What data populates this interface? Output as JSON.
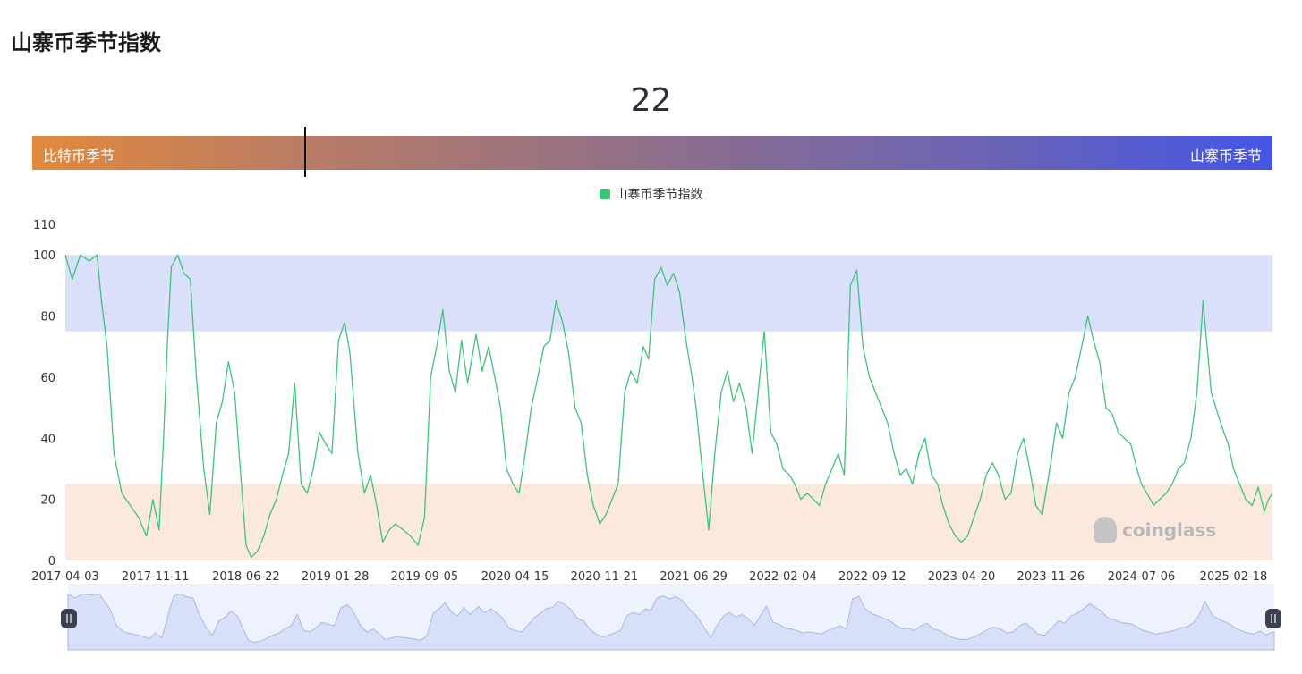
{
  "page": {
    "title": "山寨币季节指数"
  },
  "gauge": {
    "value": "22",
    "value_num": 22,
    "left_label": "比特币季节",
    "right_label": "山寨币季节",
    "gradient_start": "#e2893c",
    "gradient_end": "#4456e6"
  },
  "watermark": {
    "text": "coinglass"
  },
  "chart_data": {
    "type": "line",
    "title": "",
    "xlabel": "",
    "ylabel": "",
    "ylim": [
      0,
      110
    ],
    "yticks": [
      "0",
      "20",
      "40",
      "60",
      "80",
      "100",
      "110"
    ],
    "x_range": [
      "2017-04-03",
      "2025-05-25"
    ],
    "xticks": [
      "2017-04-03",
      "2017-11-11",
      "2018-06-22",
      "2019-01-28",
      "2019-09-05",
      "2020-04-15",
      "2020-11-21",
      "2021-06-29",
      "2022-02-04",
      "2022-09-12",
      "2023-04-20",
      "2023-11-26",
      "2024-07-06",
      "2025-02-18"
    ],
    "legend": {
      "position": "top-center"
    },
    "grid": false,
    "zones": [
      {
        "name": "altcoin-season-zone",
        "from": 75,
        "to": 100,
        "color": "#dbe0fa"
      },
      {
        "name": "bitcoin-season-zone",
        "from": 0,
        "to": 25,
        "color": "#fae9dc"
      }
    ],
    "series": [
      {
        "name": "山寨币季节指数",
        "color": "#3cc47a",
        "points": [
          [
            "2017-04-03",
            100
          ],
          [
            "2017-04-20",
            92
          ],
          [
            "2017-05-10",
            100
          ],
          [
            "2017-06-01",
            98
          ],
          [
            "2017-06-20",
            100
          ],
          [
            "2017-07-01",
            85
          ],
          [
            "2017-07-15",
            70
          ],
          [
            "2017-08-01",
            35
          ],
          [
            "2017-08-20",
            22
          ],
          [
            "2017-09-10",
            18
          ],
          [
            "2017-10-01",
            14
          ],
          [
            "2017-10-20",
            8
          ],
          [
            "2017-11-05",
            20
          ],
          [
            "2017-11-20",
            10
          ],
          [
            "2017-12-01",
            40
          ],
          [
            "2017-12-10",
            70
          ],
          [
            "2017-12-20",
            96
          ],
          [
            "2018-01-05",
            100
          ],
          [
            "2018-01-20",
            94
          ],
          [
            "2018-02-05",
            92
          ],
          [
            "2018-02-20",
            60
          ],
          [
            "2018-03-10",
            30
          ],
          [
            "2018-03-25",
            15
          ],
          [
            "2018-04-10",
            45
          ],
          [
            "2018-04-25",
            52
          ],
          [
            "2018-05-10",
            65
          ],
          [
            "2018-05-25",
            55
          ],
          [
            "2018-06-08",
            30
          ],
          [
            "2018-06-22",
            5
          ],
          [
            "2018-07-05",
            1
          ],
          [
            "2018-07-20",
            3
          ],
          [
            "2018-08-05",
            8
          ],
          [
            "2018-08-20",
            15
          ],
          [
            "2018-09-05",
            20
          ],
          [
            "2018-09-20",
            28
          ],
          [
            "2018-10-05",
            35
          ],
          [
            "2018-10-20",
            58
          ],
          [
            "2018-11-05",
            25
          ],
          [
            "2018-11-20",
            22
          ],
          [
            "2018-12-05",
            30
          ],
          [
            "2018-12-20",
            42
          ],
          [
            "2019-01-05",
            38
          ],
          [
            "2019-01-20",
            35
          ],
          [
            "2019-02-05",
            72
          ],
          [
            "2019-02-20",
            78
          ],
          [
            "2019-03-05",
            68
          ],
          [
            "2019-03-25",
            35
          ],
          [
            "2019-04-10",
            22
          ],
          [
            "2019-04-25",
            28
          ],
          [
            "2019-05-10",
            18
          ],
          [
            "2019-05-25",
            6
          ],
          [
            "2019-06-10",
            10
          ],
          [
            "2019-06-25",
            12
          ],
          [
            "2019-07-15",
            10
          ],
          [
            "2019-08-01",
            8
          ],
          [
            "2019-08-20",
            5
          ],
          [
            "2019-09-05",
            14
          ],
          [
            "2019-09-20",
            60
          ],
          [
            "2019-10-05",
            70
          ],
          [
            "2019-10-20",
            82
          ],
          [
            "2019-11-05",
            62
          ],
          [
            "2019-11-20",
            55
          ],
          [
            "2019-12-05",
            72
          ],
          [
            "2019-12-20",
            58
          ],
          [
            "2020-01-10",
            74
          ],
          [
            "2020-01-25",
            62
          ],
          [
            "2020-02-10",
            70
          ],
          [
            "2020-02-25",
            60
          ],
          [
            "2020-03-10",
            50
          ],
          [
            "2020-03-25",
            30
          ],
          [
            "2020-04-10",
            25
          ],
          [
            "2020-04-25",
            22
          ],
          [
            "2020-05-10",
            35
          ],
          [
            "2020-05-25",
            50
          ],
          [
            "2020-06-10",
            60
          ],
          [
            "2020-06-25",
            70
          ],
          [
            "2020-07-10",
            72
          ],
          [
            "2020-07-25",
            85
          ],
          [
            "2020-08-10",
            78
          ],
          [
            "2020-08-25",
            68
          ],
          [
            "2020-09-10",
            50
          ],
          [
            "2020-09-25",
            45
          ],
          [
            "2020-10-10",
            28
          ],
          [
            "2020-10-25",
            18
          ],
          [
            "2020-11-10",
            12
          ],
          [
            "2020-11-25",
            15
          ],
          [
            "2020-12-10",
            20
          ],
          [
            "2020-12-25",
            25
          ],
          [
            "2021-01-10",
            55
          ],
          [
            "2021-01-25",
            62
          ],
          [
            "2021-02-10",
            58
          ],
          [
            "2021-02-25",
            70
          ],
          [
            "2021-03-10",
            66
          ],
          [
            "2021-03-25",
            92
          ],
          [
            "2021-04-10",
            96
          ],
          [
            "2021-04-25",
            90
          ],
          [
            "2021-05-10",
            94
          ],
          [
            "2021-05-25",
            88
          ],
          [
            "2021-06-10",
            72
          ],
          [
            "2021-06-25",
            60
          ],
          [
            "2021-07-05",
            50
          ],
          [
            "2021-07-20",
            30
          ],
          [
            "2021-08-05",
            10
          ],
          [
            "2021-08-20",
            35
          ],
          [
            "2021-09-05",
            55
          ],
          [
            "2021-09-20",
            62
          ],
          [
            "2021-10-05",
            52
          ],
          [
            "2021-10-20",
            58
          ],
          [
            "2021-11-05",
            50
          ],
          [
            "2021-11-20",
            35
          ],
          [
            "2021-12-05",
            55
          ],
          [
            "2021-12-20",
            75
          ],
          [
            "2022-01-05",
            42
          ],
          [
            "2022-01-20",
            38
          ],
          [
            "2022-02-04",
            30
          ],
          [
            "2022-02-20",
            28
          ],
          [
            "2022-03-05",
            25
          ],
          [
            "2022-03-20",
            20
          ],
          [
            "2022-04-05",
            22
          ],
          [
            "2022-04-20",
            20
          ],
          [
            "2022-05-05",
            18
          ],
          [
            "2022-05-20",
            25
          ],
          [
            "2022-06-05",
            30
          ],
          [
            "2022-06-20",
            35
          ],
          [
            "2022-07-05",
            28
          ],
          [
            "2022-07-20",
            90
          ],
          [
            "2022-08-05",
            95
          ],
          [
            "2022-08-20",
            70
          ],
          [
            "2022-09-05",
            60
          ],
          [
            "2022-09-20",
            55
          ],
          [
            "2022-10-05",
            50
          ],
          [
            "2022-10-20",
            45
          ],
          [
            "2022-11-05",
            35
          ],
          [
            "2022-11-20",
            28
          ],
          [
            "2022-12-05",
            30
          ],
          [
            "2022-12-20",
            25
          ],
          [
            "2023-01-05",
            35
          ],
          [
            "2023-01-20",
            40
          ],
          [
            "2023-02-05",
            28
          ],
          [
            "2023-02-20",
            25
          ],
          [
            "2023-03-05",
            18
          ],
          [
            "2023-03-20",
            12
          ],
          [
            "2023-04-05",
            8
          ],
          [
            "2023-04-20",
            6
          ],
          [
            "2023-05-05",
            8
          ],
          [
            "2023-05-20",
            14
          ],
          [
            "2023-06-05",
            20
          ],
          [
            "2023-06-20",
            28
          ],
          [
            "2023-07-05",
            32
          ],
          [
            "2023-07-20",
            28
          ],
          [
            "2023-08-05",
            20
          ],
          [
            "2023-08-20",
            22
          ],
          [
            "2023-09-05",
            35
          ],
          [
            "2023-09-20",
            40
          ],
          [
            "2023-10-05",
            30
          ],
          [
            "2023-10-20",
            18
          ],
          [
            "2023-11-05",
            15
          ],
          [
            "2023-11-26",
            32
          ],
          [
            "2023-12-10",
            45
          ],
          [
            "2023-12-25",
            40
          ],
          [
            "2024-01-10",
            55
          ],
          [
            "2024-01-25",
            60
          ],
          [
            "2024-02-10",
            70
          ],
          [
            "2024-02-25",
            80
          ],
          [
            "2024-03-10",
            72
          ],
          [
            "2024-03-25",
            65
          ],
          [
            "2024-04-10",
            50
          ],
          [
            "2024-04-25",
            48
          ],
          [
            "2024-05-10",
            42
          ],
          [
            "2024-05-25",
            40
          ],
          [
            "2024-06-10",
            38
          ],
          [
            "2024-06-25",
            30
          ],
          [
            "2024-07-06",
            25
          ],
          [
            "2024-07-20",
            22
          ],
          [
            "2024-08-05",
            18
          ],
          [
            "2024-08-20",
            20
          ],
          [
            "2024-09-05",
            22
          ],
          [
            "2024-09-20",
            25
          ],
          [
            "2024-10-05",
            30
          ],
          [
            "2024-10-20",
            32
          ],
          [
            "2024-11-05",
            40
          ],
          [
            "2024-11-20",
            55
          ],
          [
            "2024-12-05",
            85
          ],
          [
            "2024-12-15",
            70
          ],
          [
            "2024-12-25",
            55
          ],
          [
            "2025-01-10",
            48
          ],
          [
            "2025-01-25",
            42
          ],
          [
            "2025-02-05",
            38
          ],
          [
            "2025-02-18",
            30
          ],
          [
            "2025-03-05",
            25
          ],
          [
            "2025-03-20",
            20
          ],
          [
            "2025-04-05",
            18
          ],
          [
            "2025-04-20",
            24
          ],
          [
            "2025-05-05",
            16
          ],
          [
            "2025-05-15",
            20
          ],
          [
            "2025-05-25",
            22
          ]
        ]
      }
    ]
  }
}
